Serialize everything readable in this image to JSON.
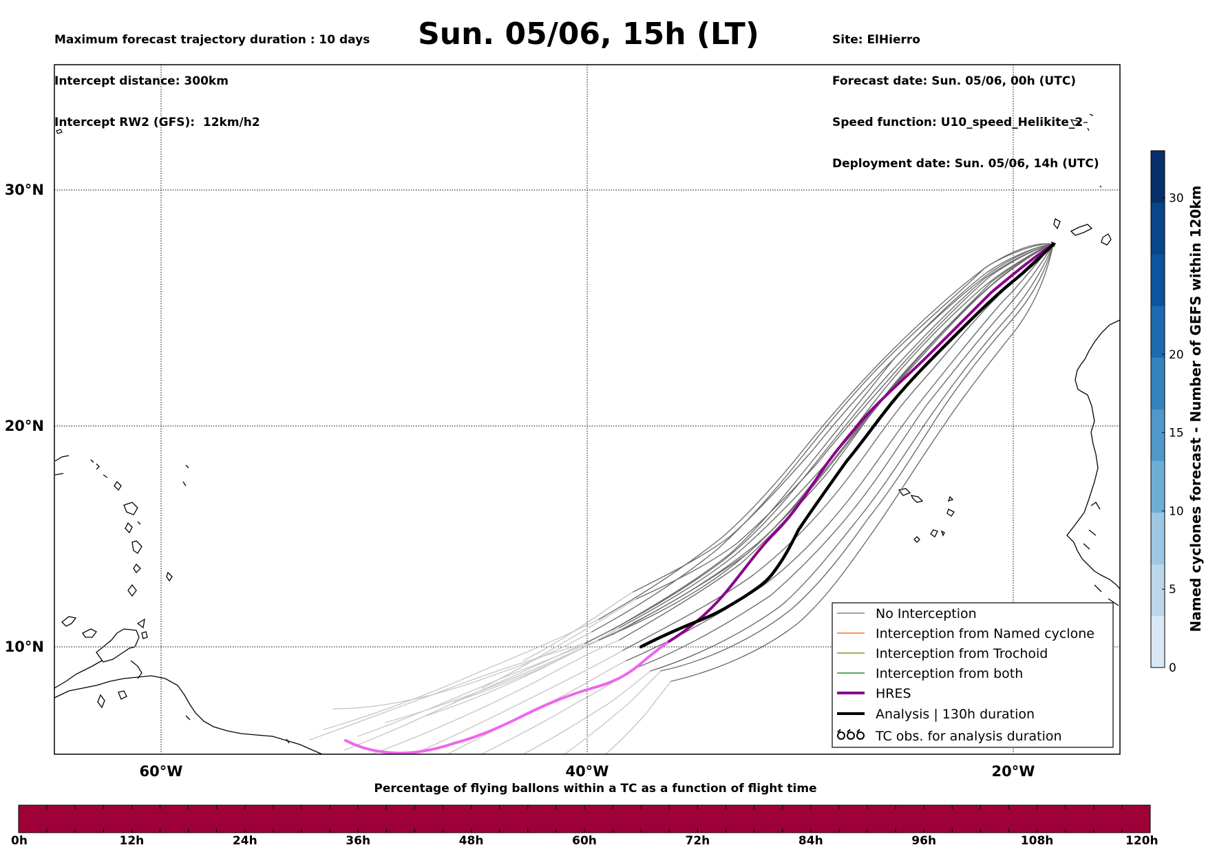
{
  "header": {
    "left_lines": [
      "Maximum forecast trajectory duration : 10 days",
      "Intercept distance: 300km",
      "Intercept RW2 (GFS):  12km/h2"
    ],
    "title": "Sun. 05/06, 15h (LT)",
    "right_lines": [
      "Site: ElHierro",
      "Forecast date: Sun. 05/06, 00h (UTC)",
      "Speed function: U10_speed_Helikite_2",
      "Deployment date: Sun. 05/06, 14h (UTC)"
    ]
  },
  "map": {
    "lat_labels": [
      "30°N",
      "20°N",
      "10°N"
    ],
    "lon_labels": [
      "60°W",
      "40°W",
      "20°W"
    ],
    "extent": {
      "lon_min": -65,
      "lon_max": -15,
      "lat_min": 5.4,
      "lat_max": 34.8
    }
  },
  "legend": {
    "items": [
      {
        "label": "No Interception",
        "color": "#808080",
        "style": "thin"
      },
      {
        "label": "Interception from Named cyclone",
        "color": "#ff6a2a",
        "style": "thin"
      },
      {
        "label": "Interception from Trochoid",
        "color": "#8c8c2a",
        "style": "thin"
      },
      {
        "label": "Interception from both",
        "color": "#2a8a2a",
        "style": "thin"
      },
      {
        "label": "HRES",
        "color": "#8b008b",
        "style": "thick"
      },
      {
        "label": "Analysis | 130h duration",
        "color": "#000000",
        "style": "thick"
      },
      {
        "label": "TC obs. for analysis duration",
        "color": "#000000",
        "style": "tc-symbol"
      }
    ]
  },
  "colorbar": {
    "label": "Named cyclones forecast - Number of GEFS within 120km",
    "ticks": [
      "0",
      "5",
      "10",
      "15",
      "20",
      "30"
    ],
    "tick_values": [
      0,
      5,
      10,
      15,
      20,
      30
    ],
    "max": 33,
    "colors": [
      "#dae8f5",
      "#bcd7ec",
      "#9dc7e2",
      "#6eaed6",
      "#4f98c9",
      "#3383be",
      "#1c6bb0",
      "#0c559e",
      "#08458b",
      "#08306b"
    ]
  },
  "strip": {
    "title": "Percentage of flying ballons within a TC as a function of flight time",
    "ticks": [
      "0h",
      "12h",
      "24h",
      "36h",
      "48h",
      "60h",
      "72h",
      "84h",
      "96h",
      "108h",
      "120h"
    ],
    "fill_color": "#9e0038"
  },
  "colors": {
    "ensemble_far": "#c8c8c8",
    "ensemble_near": "#6e6e6e",
    "hres_far": "#ee66ee",
    "hres_near": "#8b008b",
    "analysis": "#000000"
  }
}
